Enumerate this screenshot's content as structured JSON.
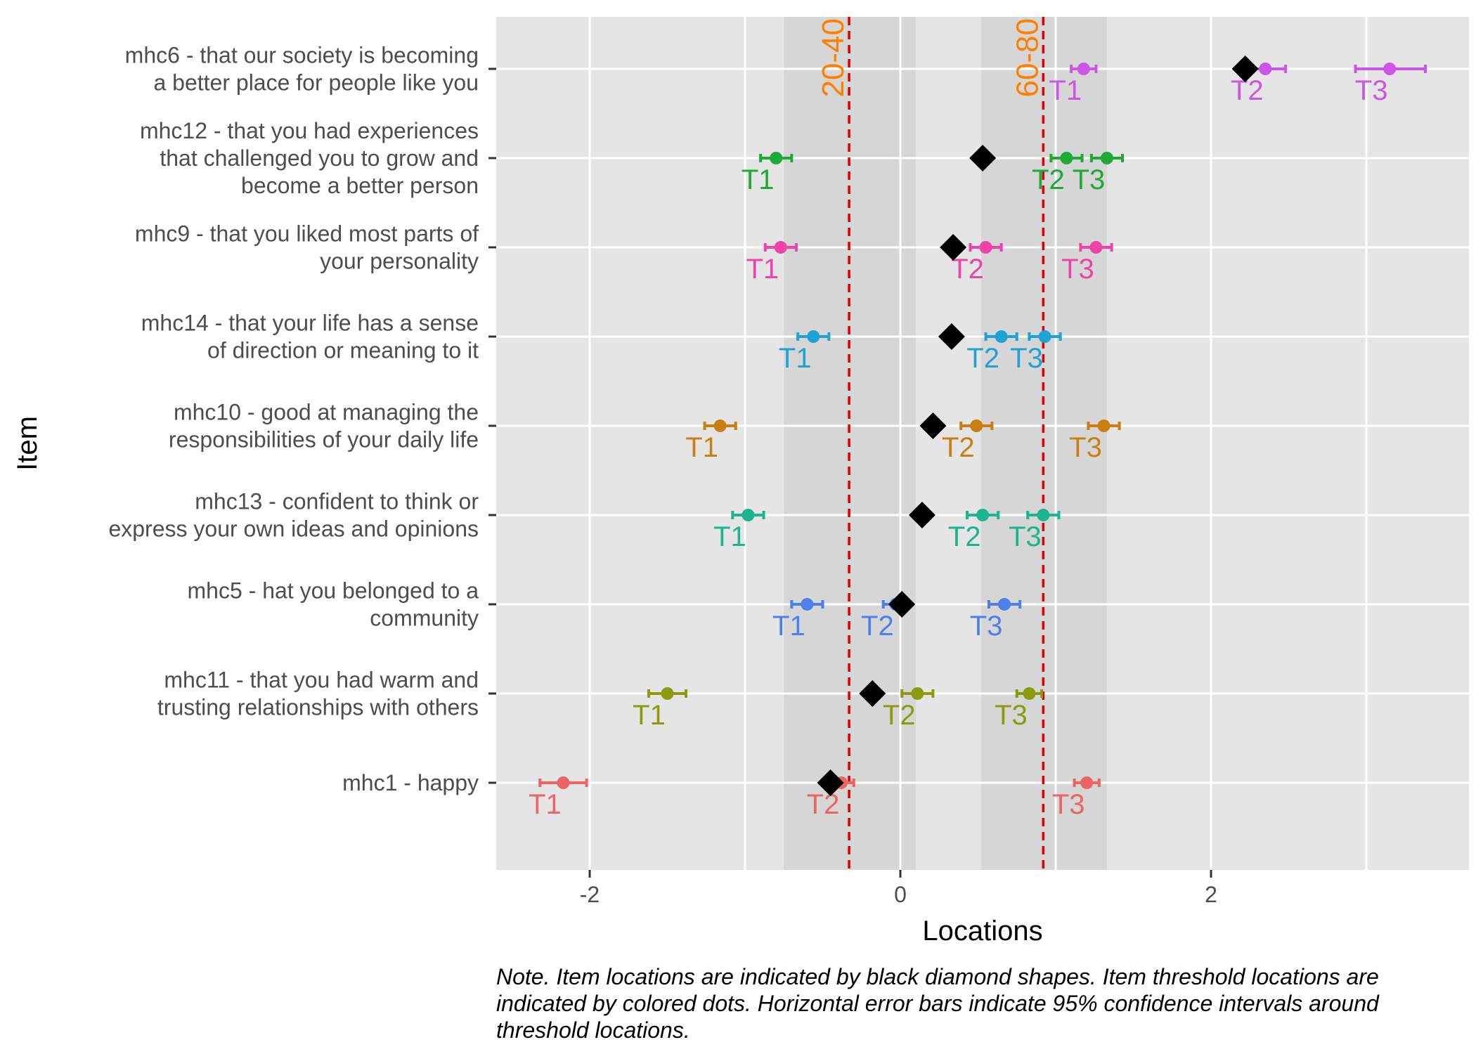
{
  "chart_data": {
    "type": "scatter",
    "xlabel": "Locations",
    "ylabel": "Item",
    "xlim": [
      -2.6,
      3.6
    ],
    "xticks": [
      -2,
      0,
      2
    ],
    "tick_labels": [
      "-2",
      "0",
      "2"
    ],
    "grid": true,
    "colors": {
      "band": "#d6d6d6",
      "cutoff_line": "#dd0000",
      "cutoff_label": "#ff7f00",
      "diamond": "#000000"
    },
    "bands": [
      {
        "from": -0.75,
        "to": 0.1
      },
      {
        "from": 0.52,
        "to": 1.33
      }
    ],
    "cutoffs": [
      {
        "label": "20-40",
        "x": -0.33
      },
      {
        "label": "60-80",
        "x": 0.92
      }
    ],
    "items": [
      {
        "label": "mhc6 - that our society is becoming\na better place for people like you",
        "color": "#cc55e8",
        "location": 2.22,
        "thresholds": [
          {
            "label": "T1",
            "x": 1.18,
            "lo": 1.1,
            "hi": 1.26
          },
          {
            "label": "T2",
            "x": 2.35,
            "lo": 2.22,
            "hi": 2.48
          },
          {
            "label": "T3",
            "x": 3.15,
            "lo": 2.93,
            "hi": 3.38
          }
        ]
      },
      {
        "label": "mhc12 - that you had experiences\nthat challenged you to grow and\nbecome a better person",
        "color": "#1faa36",
        "location": 0.53,
        "thresholds": [
          {
            "label": "T1",
            "x": -0.8,
            "lo": -0.9,
            "hi": -0.7
          },
          {
            "label": "T2",
            "x": 1.07,
            "lo": 0.97,
            "hi": 1.17
          },
          {
            "label": "T3",
            "x": 1.33,
            "lo": 1.23,
            "hi": 1.43
          }
        ]
      },
      {
        "label": "mhc9 - that you liked most parts of\nyour personality",
        "color": "#ee44a8",
        "location": 0.34,
        "thresholds": [
          {
            "label": "T1",
            "x": -0.77,
            "lo": -0.87,
            "hi": -0.67
          },
          {
            "label": "T2",
            "x": 0.55,
            "lo": 0.45,
            "hi": 0.65
          },
          {
            "label": "T3",
            "x": 1.26,
            "lo": 1.16,
            "hi": 1.36
          }
        ]
      },
      {
        "label": "mhc14 - that your life has a sense\nof direction or meaning to it",
        "color": "#1fa3d5",
        "location": 0.33,
        "thresholds": [
          {
            "label": "T1",
            "x": -0.56,
            "lo": -0.66,
            "hi": -0.46
          },
          {
            "label": "T2",
            "x": 0.65,
            "lo": 0.55,
            "hi": 0.75
          },
          {
            "label": "T3",
            "x": 0.93,
            "lo": 0.83,
            "hi": 1.03
          }
        ]
      },
      {
        "label": "mhc10 - good at managing the\nresponsibilities of your daily life",
        "color": "#c88014",
        "location": 0.21,
        "thresholds": [
          {
            "label": "T1",
            "x": -1.16,
            "lo": -1.26,
            "hi": -1.06
          },
          {
            "label": "T2",
            "x": 0.49,
            "lo": 0.39,
            "hi": 0.59
          },
          {
            "label": "T3",
            "x": 1.31,
            "lo": 1.21,
            "hi": 1.41
          }
        ]
      },
      {
        "label": "mhc13 - confident to think or\nexpress your own ideas and opinions",
        "color": "#1db58d",
        "location": 0.14,
        "thresholds": [
          {
            "label": "T1",
            "x": -0.98,
            "lo": -1.08,
            "hi": -0.88
          },
          {
            "label": "T2",
            "x": 0.53,
            "lo": 0.43,
            "hi": 0.63
          },
          {
            "label": "T3",
            "x": 0.92,
            "lo": 0.82,
            "hi": 1.02
          }
        ]
      },
      {
        "label": "mhc5 - hat you belonged to a\ncommunity",
        "color": "#4f7fe9",
        "location": 0.01,
        "thresholds": [
          {
            "label": "T1",
            "x": -0.6,
            "lo": -0.7,
            "hi": -0.5
          },
          {
            "label": "T2",
            "x": -0.03,
            "lo": -0.11,
            "hi": 0.05
          },
          {
            "label": "T3",
            "x": 0.67,
            "lo": 0.57,
            "hi": 0.77
          }
        ]
      },
      {
        "label": "mhc11 - that you had warm and\ntrusting relationships with others",
        "color": "#8c9a0e",
        "location": -0.18,
        "thresholds": [
          {
            "label": "T1",
            "x": -1.5,
            "lo": -1.62,
            "hi": -1.38
          },
          {
            "label": "T2",
            "x": 0.11,
            "lo": 0.01,
            "hi": 0.21
          },
          {
            "label": "T3",
            "x": 0.83,
            "lo": 0.75,
            "hi": 0.91
          }
        ]
      },
      {
        "label": "mhc1 - happy",
        "color": "#ec6464",
        "location": -0.45,
        "thresholds": [
          {
            "label": "T1",
            "x": -2.17,
            "lo": -2.32,
            "hi": -2.02
          },
          {
            "label": "T2",
            "x": -0.38,
            "lo": -0.46,
            "hi": -0.3
          },
          {
            "label": "T3",
            "x": 1.2,
            "lo": 1.12,
            "hi": 1.28
          }
        ]
      }
    ]
  },
  "note": "Note. Item locations are indicated by black diamond shapes. Item threshold locations are indicated by colored dots. Horizontal error bars indicate 95% confidence intervals around threshold locations."
}
